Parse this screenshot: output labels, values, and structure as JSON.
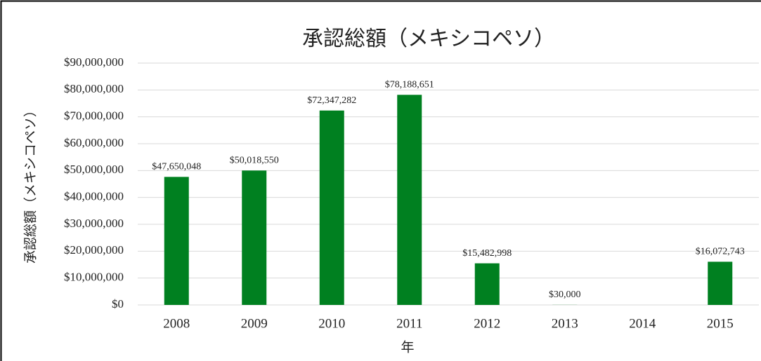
{
  "chart_data": {
    "type": "bar",
    "title": "承認総額（メキシコペソ）",
    "x_label": "年",
    "y_label": "承認総額（メキシコペソ）",
    "categories": [
      "2008",
      "2009",
      "2010",
      "2011",
      "2012",
      "2013",
      "2014",
      "2015"
    ],
    "values": [
      47650048,
      50018550,
      72347282,
      78188651,
      15482998,
      30000,
      null,
      16072743
    ],
    "value_labels": [
      "$47,650,048",
      "$50,018,550",
      "$72,347,282",
      "$78,188,651",
      "$15,482,998",
      "$30,000",
      null,
      "$16,072,743"
    ],
    "color": "#008020",
    "ylim": [
      0,
      90000000
    ],
    "yticks": [
      {
        "value": 0,
        "label": "$0"
      },
      {
        "value": 10000000,
        "label": "$10,000,000"
      },
      {
        "value": 20000000,
        "label": "$20,000,000"
      },
      {
        "value": 30000000,
        "label": "$30,000,000"
      },
      {
        "value": 40000000,
        "label": "$40,000,000"
      },
      {
        "value": 50000000,
        "label": "$50,000,000"
      },
      {
        "value": 60000000,
        "label": "$60,000,000"
      },
      {
        "value": 70000000,
        "label": "$70,000,000"
      },
      {
        "value": 80000000,
        "label": "$80,000,000"
      },
      {
        "value": 90000000,
        "label": "$90,000,000"
      }
    ],
    "grid": true
  }
}
